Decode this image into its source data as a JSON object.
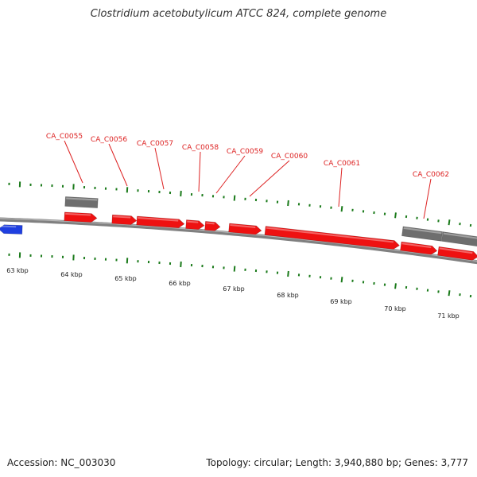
{
  "map": {
    "title": "Clostridium acetobutylicum ATCC 824, complete genome",
    "accession_label": "Accession: NC_003030",
    "summary": "Topology: circular; Length: 3,940,880 bp; Genes: 3,777",
    "colors": {
      "backbone": "#808080",
      "forward_gene": "#ee1111",
      "reverse_gene": "#1f3fe0",
      "other_feature": "#6e6e6e",
      "tick": "#1a7a1a",
      "label": "#dd2222"
    },
    "scale_labels": [
      "63 kbp",
      "64 kbp",
      "65 kbp",
      "66 kbp",
      "67 kbp",
      "68 kbp",
      "69 kbp",
      "70 kbp",
      "71 kbp"
    ],
    "gene_labels": [
      "CA_C0055",
      "CA_C0056",
      "CA_C0057",
      "CA_C0058",
      "CA_C0059",
      "CA_C0060",
      "CA_C0061",
      "CA_C0062"
    ]
  }
}
